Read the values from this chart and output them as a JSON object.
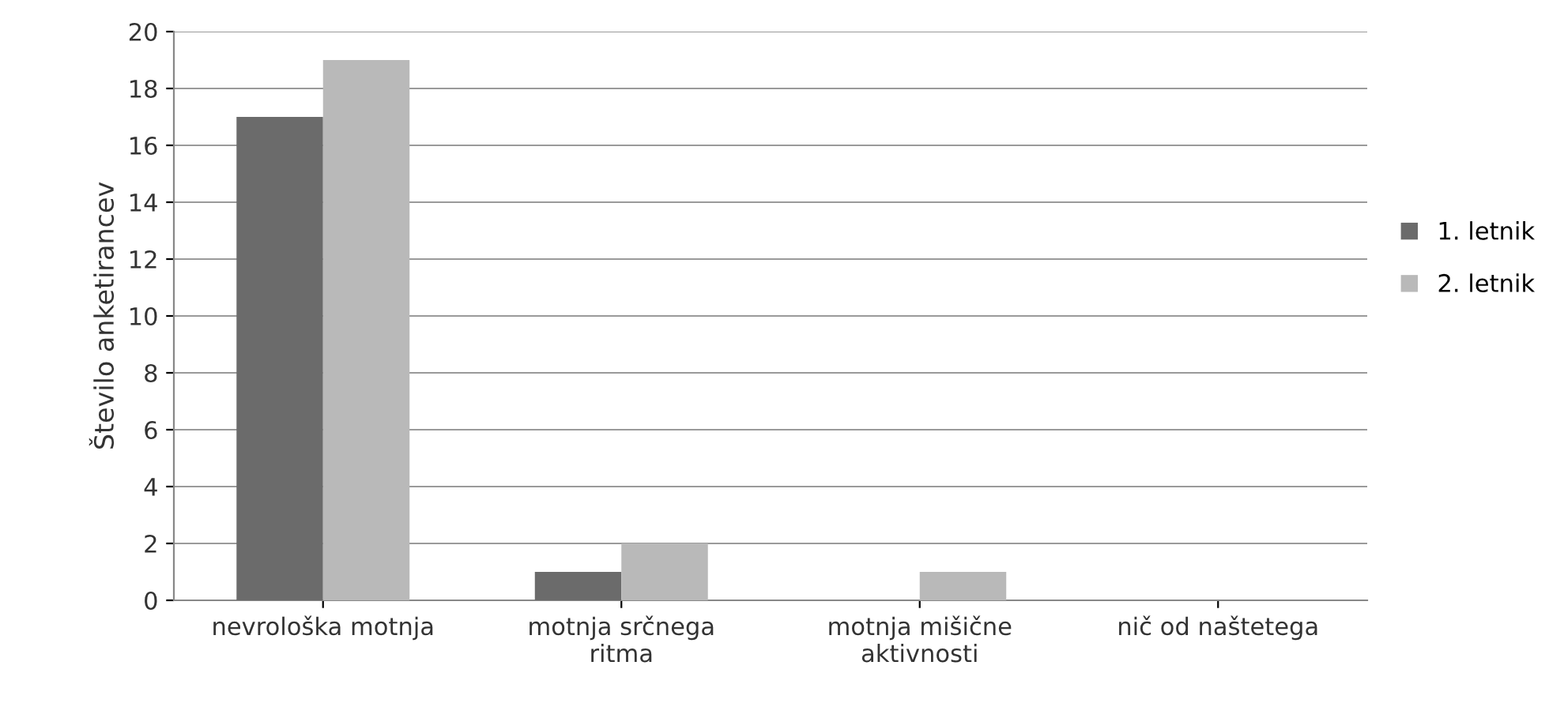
{
  "chart_data": {
    "type": "bar",
    "ylabel": "Število anketirancev",
    "categories": [
      "nevrološka motnja",
      "motnja srčnega\nritma",
      "motnja mišične\naktivnosti",
      "nič od naštetega"
    ],
    "series": [
      {
        "name": "1. letnik",
        "color": "#6b6b6b",
        "values": [
          17,
          1,
          0,
          0
        ]
      },
      {
        "name": "2. letnik",
        "color": "#b9b9b9",
        "values": [
          19,
          2,
          1,
          0
        ]
      }
    ],
    "ylim": [
      0,
      20
    ],
    "yticks": [
      0,
      2,
      4,
      6,
      8,
      10,
      12,
      14,
      16,
      18,
      20
    ],
    "grid": "y",
    "legend": "right"
  }
}
